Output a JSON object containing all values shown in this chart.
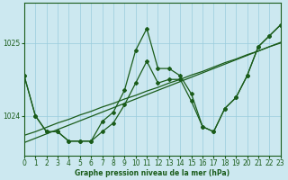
{
  "xlabel": "Graphe pression niveau de la mer (hPa)",
  "background_color": "#cce8f0",
  "grid_color": "#99ccdd",
  "line_color": "#1a5c1a",
  "x_hours": [
    0,
    1,
    2,
    3,
    4,
    5,
    6,
    7,
    8,
    9,
    10,
    11,
    12,
    13,
    14,
    15,
    16,
    17,
    18,
    19,
    20,
    21,
    22,
    23
  ],
  "series1": [
    1024.55,
    1024.0,
    1023.78,
    1023.78,
    1023.65,
    1023.65,
    1023.65,
    1023.78,
    1023.9,
    1024.15,
    1024.45,
    1024.75,
    1024.45,
    1024.5,
    1024.5,
    1024.2,
    1023.85,
    1023.78,
    1024.1,
    1024.25,
    1024.55,
    1024.95,
    1025.1,
    1025.25
  ],
  "series2": [
    1024.55,
    1024.0,
    1023.78,
    1023.78,
    1023.65,
    1023.65,
    1023.65,
    1023.92,
    1024.05,
    1024.35,
    1024.9,
    1025.2,
    1024.65,
    1024.65,
    1024.55,
    1024.3,
    1023.85,
    1023.78,
    1024.1,
    1024.25,
    1024.55,
    1024.95,
    1025.1,
    1025.25
  ],
  "trend1": [
    1023.73,
    1023.78,
    1023.84,
    1023.9,
    1023.95,
    1024.01,
    1024.06,
    1024.12,
    1024.17,
    1024.23,
    1024.28,
    1024.34,
    1024.39,
    1024.45,
    1024.5,
    1024.56,
    1024.61,
    1024.67,
    1024.73,
    1024.78,
    1024.84,
    1024.89,
    1024.95,
    1025.0
  ],
  "trend2": [
    1023.63,
    1023.69,
    1023.75,
    1023.81,
    1023.87,
    1023.93,
    1023.99,
    1024.05,
    1024.11,
    1024.17,
    1024.23,
    1024.29,
    1024.35,
    1024.41,
    1024.47,
    1024.53,
    1024.59,
    1024.65,
    1024.71,
    1024.77,
    1024.83,
    1024.89,
    1024.95,
    1025.01
  ],
  "ylim": [
    1023.45,
    1025.55
  ],
  "yticks": [
    1024.0,
    1025.0
  ],
  "xlim": [
    0,
    23
  ]
}
